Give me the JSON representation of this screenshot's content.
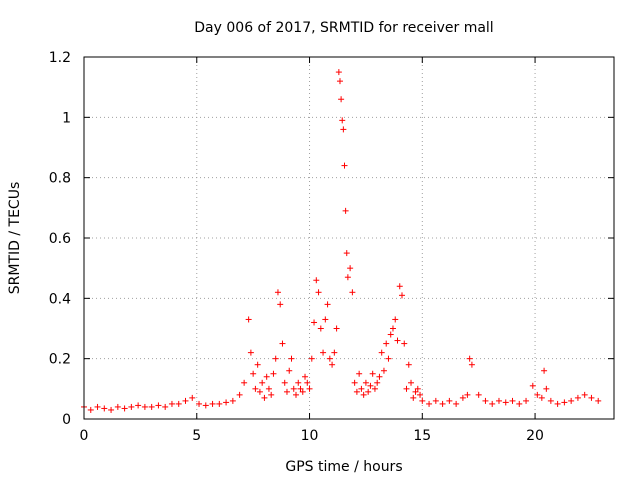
{
  "chart_data": {
    "type": "scatter",
    "title": "Day 006 of 2017, SRMTID for receiver mall",
    "xlabel": "GPS time / hours",
    "ylabel": "SRMTID / TECUs",
    "xlim": [
      0,
      23.5
    ],
    "ylim": [
      0,
      1.2
    ],
    "xticks": [
      0,
      5,
      10,
      15,
      20
    ],
    "xtick_labels": [
      "0",
      "5",
      "10",
      "15",
      "20"
    ],
    "yticks": [
      0,
      0.2,
      0.4,
      0.6,
      0.8,
      1,
      1.2
    ],
    "ytick_labels": [
      "0",
      "0.2",
      "0.4",
      "0.6",
      "0.8",
      "1",
      "1.2"
    ],
    "grid": true,
    "marker": "+",
    "series": [
      {
        "name": "SRMTID",
        "color": "#ff0000",
        "x": [
          0.0,
          0.3,
          0.6,
          0.9,
          1.2,
          1.5,
          1.8,
          2.1,
          2.4,
          2.7,
          3.0,
          3.3,
          3.6,
          3.9,
          4.2,
          4.5,
          4.8,
          5.1,
          5.4,
          5.7,
          6.0,
          6.3,
          6.6,
          6.9,
          7.1,
          7.3,
          7.4,
          7.5,
          7.6,
          7.7,
          7.8,
          7.9,
          8.0,
          8.1,
          8.2,
          8.3,
          8.4,
          8.5,
          8.6,
          8.7,
          8.8,
          8.9,
          9.0,
          9.1,
          9.2,
          9.3,
          9.4,
          9.5,
          9.6,
          9.7,
          9.8,
          9.9,
          10.0,
          10.1,
          10.2,
          10.3,
          10.4,
          10.5,
          10.6,
          10.7,
          10.8,
          10.9,
          11.0,
          11.1,
          11.2,
          11.3,
          11.35,
          11.4,
          11.45,
          11.5,
          11.55,
          11.6,
          11.65,
          11.7,
          11.8,
          11.9,
          12.0,
          12.1,
          12.2,
          12.3,
          12.4,
          12.5,
          12.6,
          12.7,
          12.8,
          12.9,
          13.0,
          13.1,
          13.2,
          13.3,
          13.4,
          13.5,
          13.6,
          13.7,
          13.8,
          13.9,
          14.0,
          14.1,
          14.2,
          14.3,
          14.4,
          14.5,
          14.6,
          14.7,
          14.8,
          14.9,
          15.0,
          15.3,
          15.6,
          15.9,
          16.2,
          16.5,
          16.8,
          17.0,
          17.1,
          17.2,
          17.5,
          17.8,
          18.1,
          18.4,
          18.7,
          19.0,
          19.3,
          19.6,
          19.9,
          20.1,
          20.3,
          20.4,
          20.5,
          20.7,
          21.0,
          21.3,
          21.6,
          21.9,
          22.2,
          22.5,
          22.8
        ],
        "y": [
          0.04,
          0.03,
          0.04,
          0.035,
          0.03,
          0.04,
          0.035,
          0.04,
          0.045,
          0.04,
          0.04,
          0.045,
          0.04,
          0.05,
          0.05,
          0.06,
          0.07,
          0.05,
          0.045,
          0.05,
          0.05,
          0.055,
          0.06,
          0.08,
          0.12,
          0.33,
          0.22,
          0.15,
          0.1,
          0.18,
          0.09,
          0.12,
          0.07,
          0.14,
          0.1,
          0.08,
          0.15,
          0.2,
          0.42,
          0.38,
          0.25,
          0.12,
          0.09,
          0.16,
          0.2,
          0.1,
          0.08,
          0.12,
          0.1,
          0.09,
          0.14,
          0.12,
          0.1,
          0.2,
          0.32,
          0.46,
          0.42,
          0.3,
          0.22,
          0.33,
          0.38,
          0.2,
          0.18,
          0.22,
          0.3,
          1.15,
          1.12,
          1.06,
          0.99,
          0.96,
          0.84,
          0.69,
          0.55,
          0.47,
          0.5,
          0.42,
          0.12,
          0.09,
          0.15,
          0.1,
          0.08,
          0.12,
          0.09,
          0.11,
          0.15,
          0.1,
          0.12,
          0.14,
          0.22,
          0.16,
          0.25,
          0.2,
          0.28,
          0.3,
          0.33,
          0.26,
          0.44,
          0.41,
          0.25,
          0.1,
          0.18,
          0.12,
          0.07,
          0.09,
          0.1,
          0.08,
          0.06,
          0.05,
          0.06,
          0.05,
          0.06,
          0.05,
          0.07,
          0.08,
          0.2,
          0.18,
          0.08,
          0.06,
          0.05,
          0.06,
          0.055,
          0.06,
          0.05,
          0.06,
          0.11,
          0.08,
          0.07,
          0.16,
          0.1,
          0.06,
          0.05,
          0.055,
          0.06,
          0.07,
          0.08,
          0.07,
          0.06
        ]
      }
    ]
  }
}
